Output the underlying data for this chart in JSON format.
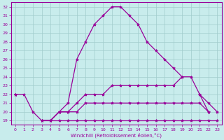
{
  "xlabel": "Windchill (Refroidissement éolien,°C)",
  "x": [
    0,
    1,
    2,
    3,
    4,
    5,
    6,
    7,
    8,
    9,
    10,
    11,
    12,
    13,
    14,
    15,
    16,
    17,
    18,
    19,
    20,
    21,
    22,
    23
  ],
  "line_main": [
    22,
    22,
    20,
    19,
    19,
    20,
    21,
    26,
    28,
    30,
    31,
    32,
    32,
    31,
    30,
    28,
    27,
    26,
    25,
    24,
    null,
    22,
    21,
    20
  ],
  "line_flat1": [
    22,
    null,
    null,
    19,
    19,
    19,
    19,
    19,
    19,
    19,
    19,
    19,
    19,
    19,
    19,
    19,
    19,
    19,
    19,
    19,
    19,
    19,
    19,
    19
  ],
  "line_flat2": [
    22,
    null,
    null,
    19,
    19,
    20,
    20,
    20,
    21,
    21,
    21,
    21,
    21,
    21,
    21,
    21,
    21,
    21,
    21,
    21,
    21,
    21,
    20,
    null
  ],
  "line_flat3": [
    22,
    null,
    null,
    19,
    19,
    20,
    20,
    21,
    22,
    22,
    22,
    23,
    23,
    23,
    23,
    23,
    23,
    23,
    23,
    24,
    24,
    22,
    20,
    null
  ],
  "ylim": [
    19,
    32
  ],
  "xlim": [
    0,
    23
  ],
  "yticks": [
    19,
    20,
    21,
    22,
    23,
    24,
    25,
    26,
    27,
    28,
    29,
    30,
    31,
    32
  ],
  "xticks": [
    0,
    1,
    2,
    3,
    4,
    5,
    6,
    7,
    8,
    9,
    10,
    11,
    12,
    13,
    14,
    15,
    16,
    17,
    18,
    19,
    20,
    21,
    22,
    23
  ],
  "line_color": "#990099",
  "bg_color": "#c8ecec",
  "grid_color": "#a0cccc",
  "marker": "*",
  "marker_size": 3,
  "linewidth": 0.9
}
